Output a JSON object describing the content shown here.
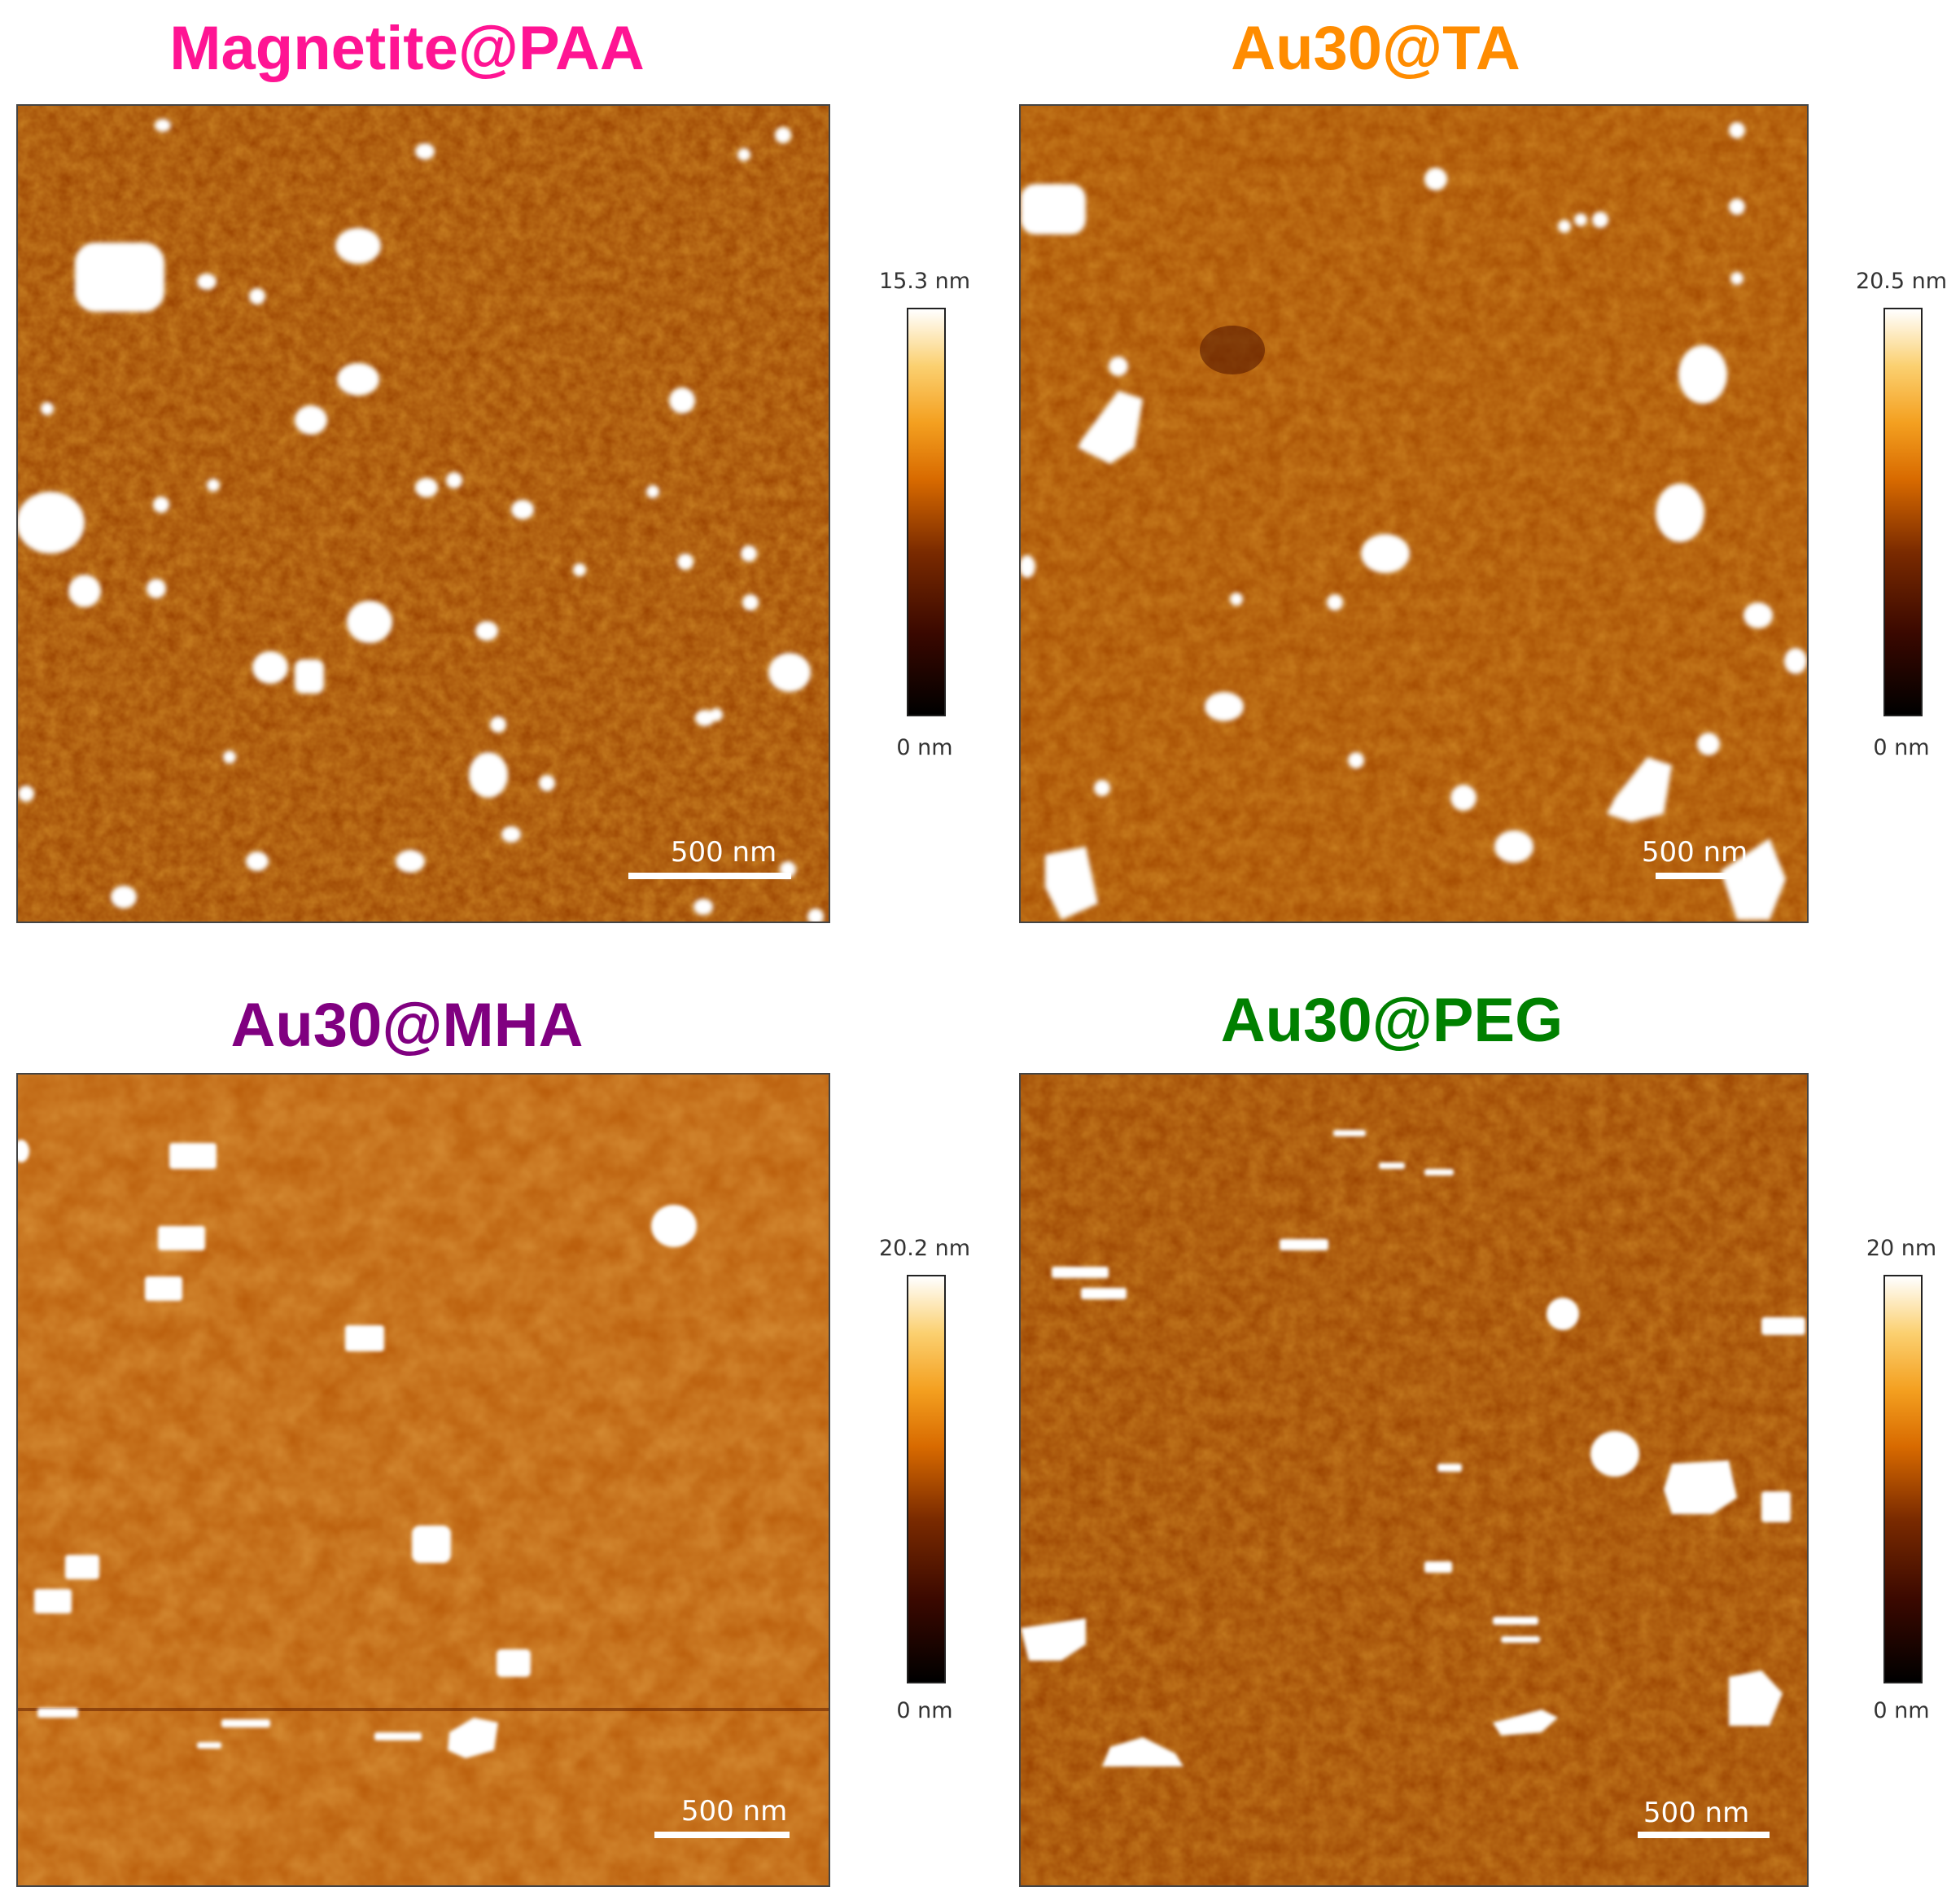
{
  "panels": [
    {
      "title": "Magnetite@PAA",
      "title_color": "#ff1493",
      "colorbar_max": "15.3 nm",
      "colorbar_min": "0 nm",
      "scale_bar": "500 nm"
    },
    {
      "title": "Au30@TA",
      "title_color": "#ff8c00",
      "colorbar_max": "20.5 nm",
      "colorbar_min": "0 nm",
      "scale_bar": "500 nm"
    },
    {
      "title": "Au30@MHA",
      "title_color": "#800080",
      "colorbar_max": "20.2 nm",
      "colorbar_min": "0 nm",
      "scale_bar": "500 nm"
    },
    {
      "title": "Au30@PEG",
      "title_color": "#008000",
      "colorbar_max": "20 nm",
      "colorbar_min": "0 nm",
      "scale_bar": "500 nm"
    }
  ],
  "colors": {
    "afm_base": "#a84a00",
    "afm_particle": "#ffffff"
  }
}
